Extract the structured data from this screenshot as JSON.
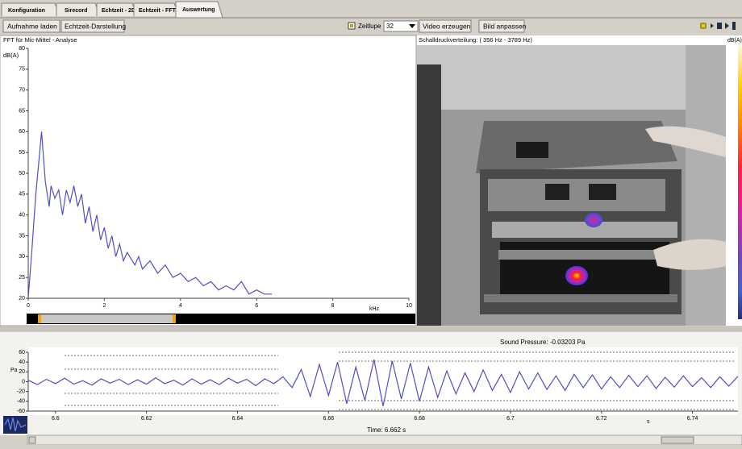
{
  "tabs": [
    "Konfiguration",
    "Sirecord",
    "Echtzeit - 2D",
    "Echtzeit - FFT",
    "Auswertung"
  ],
  "toolbar": {
    "load_button": "Aufnahme laden",
    "realtime_button": "Echtzeit-Darstellung",
    "slowmo_label": "Zeitlupe",
    "slowmo_value": "32",
    "video_button": "Video erzeugen",
    "image_button": "Bild anpassen"
  },
  "fft": {
    "type": "line",
    "title": "FFT für Mic-Mittel - Analyse",
    "y_label": "dB(A)",
    "x_label": "kHz",
    "color": "#5050c0",
    "x": [
      0,
      0.1,
      0.2,
      0.3,
      0.35,
      0.45,
      0.55,
      0.6,
      0.7,
      0.8,
      0.9,
      1.0,
      1.1,
      1.2,
      1.3,
      1.4,
      1.5,
      1.6,
      1.7,
      1.8,
      1.9,
      2.0,
      2.1,
      2.2,
      2.3,
      2.4,
      2.5,
      2.6,
      2.8,
      2.9,
      3.0,
      3.2,
      3.4,
      3.6,
      3.8,
      4.0,
      4.2,
      4.4,
      4.6,
      4.8,
      5.0,
      5.2,
      5.4,
      5.6,
      5.8,
      6.0,
      6.2,
      6.4
    ],
    "values": [
      20,
      32,
      45,
      55,
      60,
      48,
      42,
      47,
      44,
      46,
      40,
      46,
      43,
      47,
      42,
      45,
      38,
      42,
      36,
      40,
      34,
      37,
      32,
      35,
      30,
      33,
      29,
      31,
      28,
      30,
      27,
      29,
      26,
      28,
      25,
      26,
      24,
      25,
      23,
      24,
      22,
      23,
      22,
      24,
      21,
      22,
      21,
      21
    ],
    "xlim": [
      0,
      10
    ],
    "xticks": [
      0,
      2,
      4,
      6,
      8,
      10
    ],
    "ylim": [
      20,
      80
    ],
    "yticks": [
      20,
      25,
      30,
      35,
      40,
      45,
      50,
      55,
      60,
      65,
      70,
      75,
      80
    ]
  },
  "image": {
    "title": "Schalldruckverteilung: ( 356 Hz - 3789 Hz)",
    "colorbar_label": "dB(A)"
  },
  "waveform": {
    "type": "line",
    "title": "Sound Pressure: -0.03203 Pa",
    "y_label": "Pa",
    "x_label": "s",
    "time_readout": "Time: 6.662 s",
    "color": "#5050c0",
    "x": [
      6.594,
      6.596,
      6.598,
      6.6,
      6.602,
      6.604,
      6.606,
      6.608,
      6.61,
      6.612,
      6.614,
      6.616,
      6.618,
      6.62,
      6.622,
      6.624,
      6.626,
      6.628,
      6.63,
      6.632,
      6.634,
      6.636,
      6.638,
      6.64,
      6.642,
      6.644,
      6.646,
      6.648,
      6.65,
      6.652,
      6.654,
      6.656,
      6.658,
      6.66,
      6.662,
      6.664,
      6.666,
      6.668,
      6.67,
      6.672,
      6.674,
      6.676,
      6.678,
      6.68,
      6.682,
      6.684,
      6.686,
      6.688,
      6.69,
      6.692,
      6.694,
      6.696,
      6.698,
      6.7,
      6.702,
      6.704,
      6.706,
      6.708,
      6.71,
      6.712,
      6.714,
      6.716,
      6.718,
      6.72,
      6.722,
      6.724,
      6.726,
      6.728,
      6.73,
      6.732,
      6.734,
      6.736,
      6.738,
      6.74,
      6.742,
      6.744,
      6.746,
      6.748,
      6.75
    ],
    "values": [
      3,
      -6,
      5,
      -4,
      7,
      -5,
      2,
      -7,
      6,
      -3,
      5,
      -6,
      4,
      -5,
      8,
      -4,
      3,
      -7,
      6,
      -5,
      4,
      -6,
      7,
      -3,
      5,
      -8,
      6,
      -4,
      10,
      -12,
      25,
      -30,
      35,
      -28,
      40,
      -45,
      30,
      -38,
      45,
      -50,
      42,
      -35,
      38,
      -40,
      30,
      -32,
      22,
      -25,
      18,
      -20,
      24,
      -18,
      15,
      -22,
      20,
      -15,
      18,
      -16,
      12,
      -18,
      15,
      -12,
      14,
      -15,
      10,
      -12,
      13,
      -10,
      12,
      -14,
      9,
      -11,
      12,
      -10,
      8,
      -12,
      10,
      -9,
      11
    ],
    "xlim": [
      6.594,
      6.75
    ],
    "xticks": [
      6.6,
      6.62,
      6.64,
      6.66,
      6.68,
      6.7,
      6.72,
      6.74
    ],
    "ylim": [
      -60,
      60
    ],
    "yticks": [
      -60,
      -40,
      -20,
      0,
      20,
      40,
      60
    ]
  }
}
